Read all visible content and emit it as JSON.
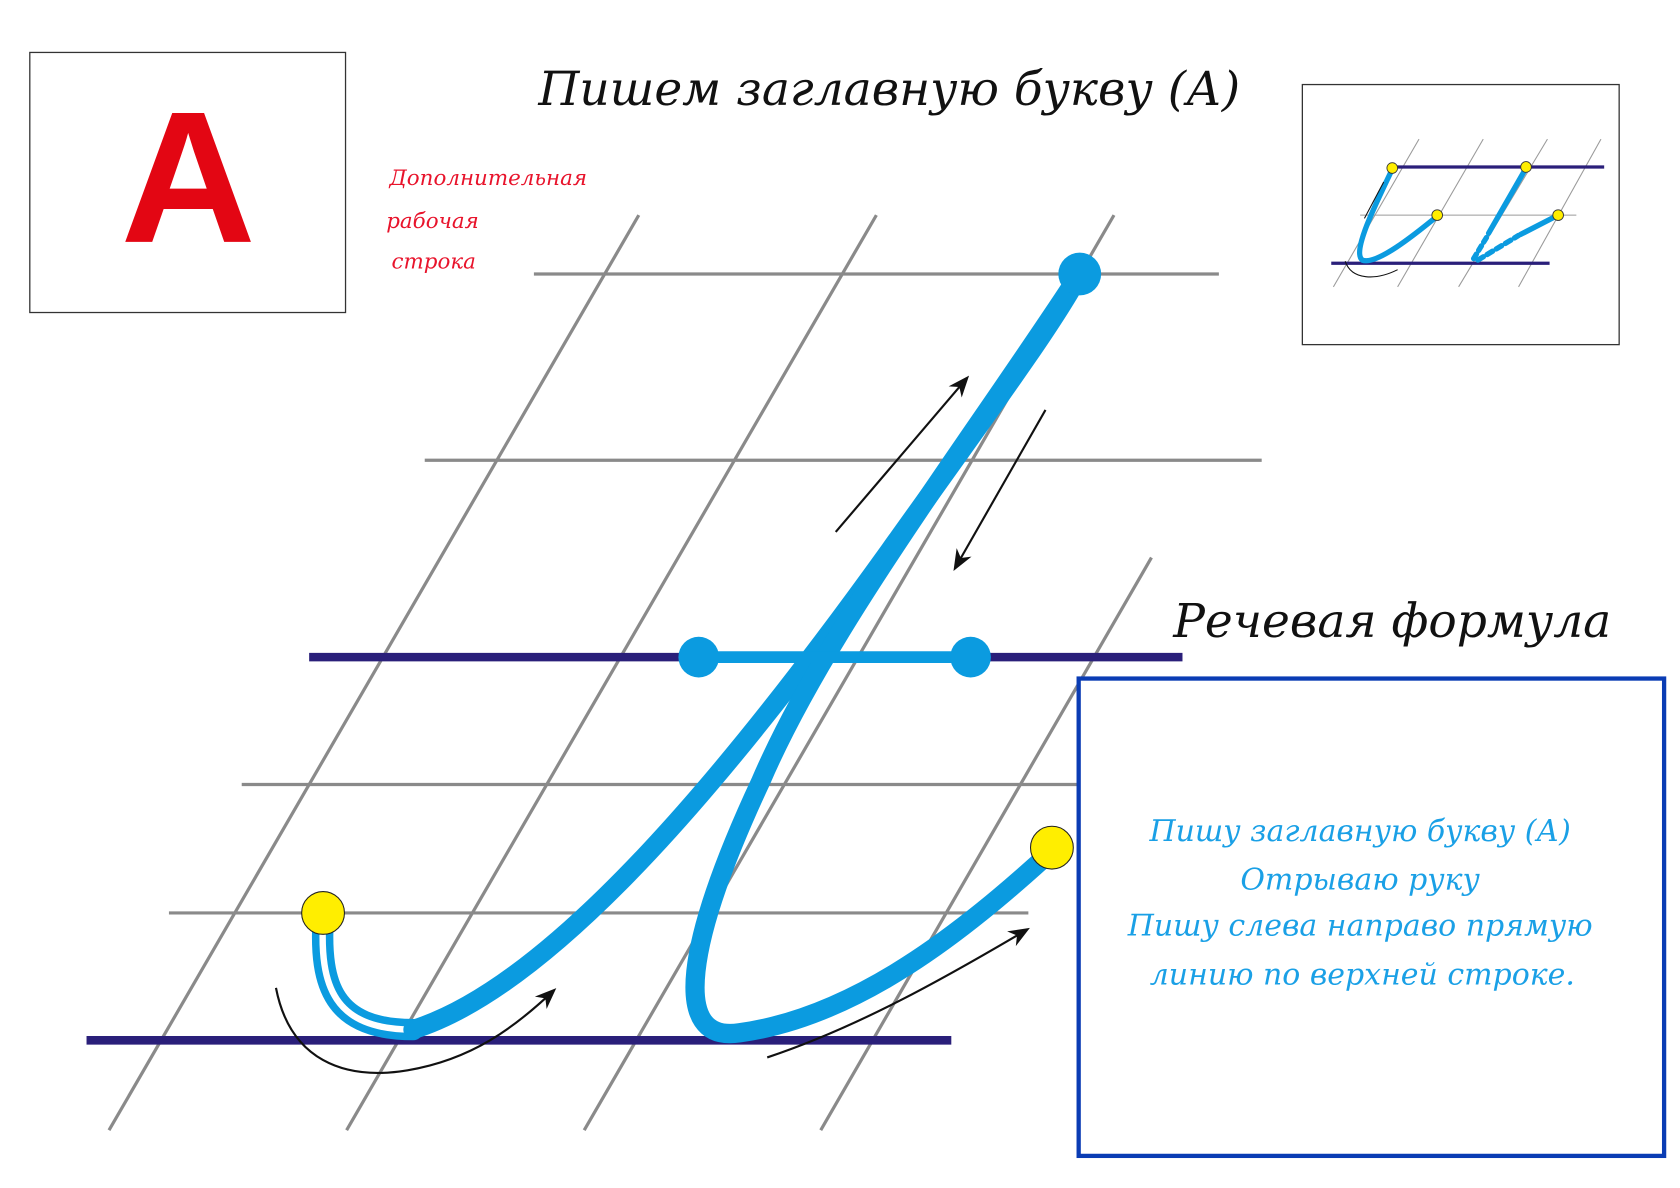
{
  "letter_card": {
    "letter": "А"
  },
  "title": "Пишем заглавную букву (А)",
  "extra_line_note": [
    "Дополнительная",
    "рабочая",
    "строка"
  ],
  "speech_formula": {
    "heading": "Речевая формула",
    "lines": [
      "Пишу  заглавную букву (А)",
      "Отрываю руку",
      "Пишу слева направо  прямую",
      "линию по верхней строке."
    ]
  },
  "colors": {
    "letter_stroke": "#0b9be0",
    "baseline": "#2a1f7a",
    "grid": "#8a8a8a",
    "start_dot": "#ffee00",
    "card_letter": "#e30613",
    "note_text": "#e8132b",
    "formula_border": "#0a3cb4",
    "formula_text": "#1aa0e6"
  }
}
